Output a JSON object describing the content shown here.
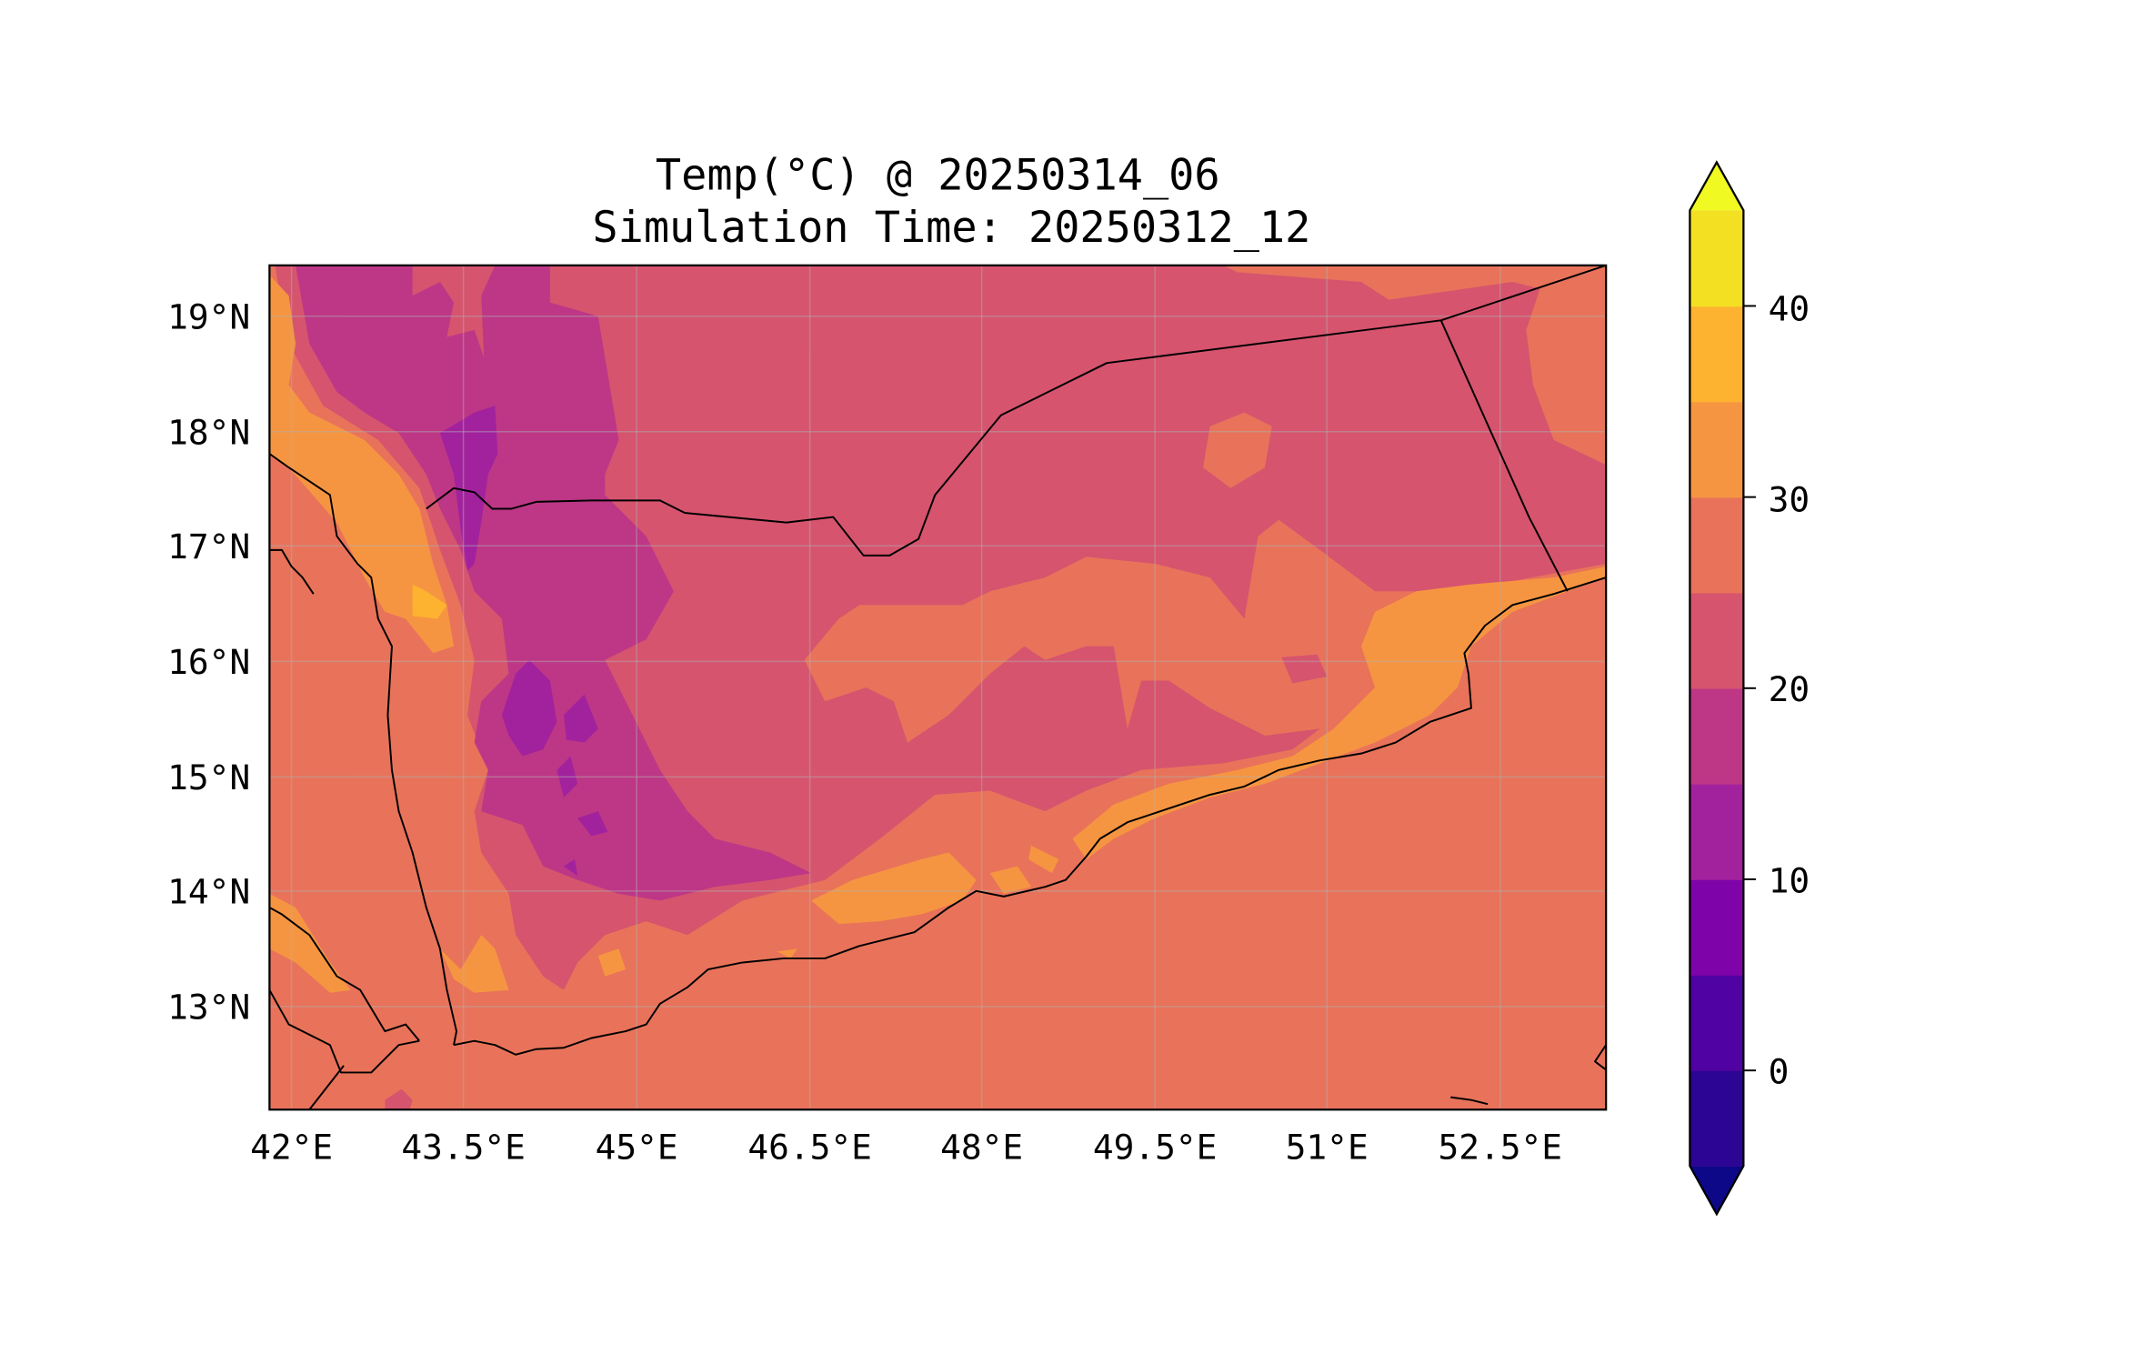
{
  "chart_data": {
    "type": "heatmap",
    "subtype": "filled-contour-map",
    "title": "Temp(°C) @ 20250314_06",
    "subtitle": "Simulation Time: 20250312_12",
    "xlabel": "",
    "ylabel": "",
    "extent": {
      "lon": [
        41.82,
        53.42
      ],
      "lat": [
        12.11,
        19.43
      ]
    },
    "xticks": [
      42,
      43.5,
      45,
      46.5,
      48,
      49.5,
      51,
      52.5
    ],
    "xtick_labels": [
      "42°E",
      "43.5°E",
      "45°E",
      "46.5°E",
      "48°E",
      "49.5°E",
      "51°E",
      "52.5°E"
    ],
    "yticks": [
      19,
      18,
      17,
      16,
      15,
      14,
      13
    ],
    "ytick_labels": [
      "19°N",
      "18°N",
      "17°N",
      "16°N",
      "15°N",
      "14°N",
      "13°N"
    ],
    "grid": true,
    "colorbar": {
      "levels": [
        -5,
        0,
        5,
        10,
        15,
        20,
        25,
        30,
        35,
        40,
        45
      ],
      "extend": "both",
      "ticks": [
        40,
        30,
        20,
        10,
        0
      ],
      "tick_labels": [
        "40",
        "30",
        "20",
        "10",
        "0"
      ],
      "colors": [
        "#2c0594",
        "#5002a2",
        "#7e03a8",
        "#a2229e",
        "#bd3786",
        "#d6546e",
        "#e8735a",
        "#f69541",
        "#fdb32f",
        "#f4e023"
      ],
      "under_color": "#0d0887",
      "over_color": "#f0f921",
      "placement": "right"
    },
    "fields": {
      "sea_and_lowlands": "25-30",
      "interior_plateau": "20-25",
      "western_highlands": "15-20",
      "highland_peaks": "10-15",
      "coastal_plains": "30-35",
      "hottest_pockets": "35-40"
    }
  }
}
